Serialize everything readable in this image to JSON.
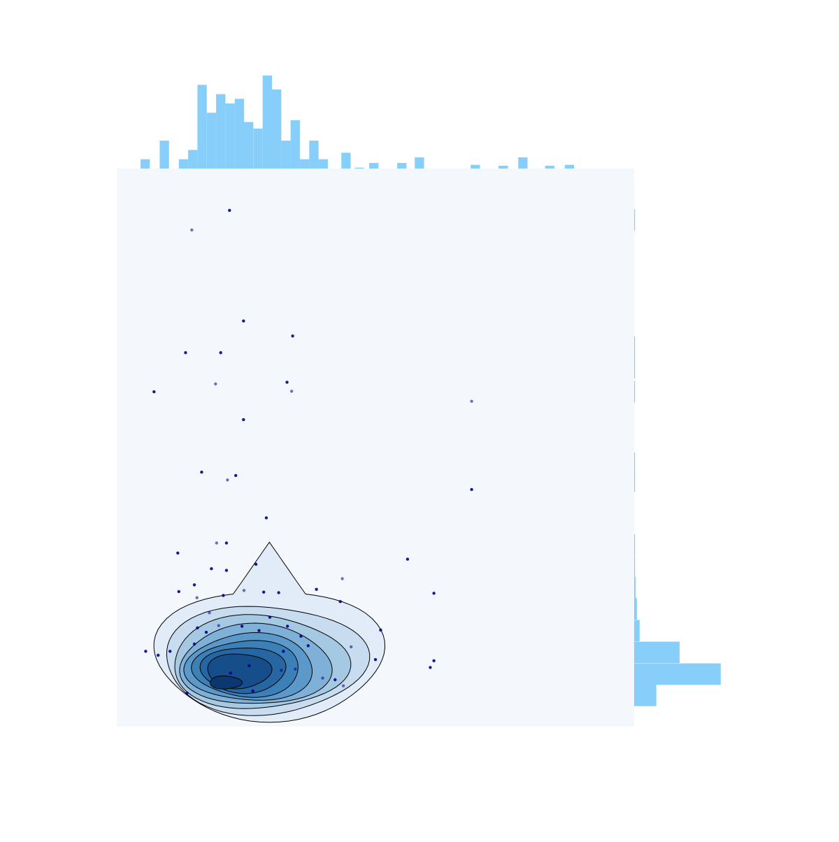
{
  "chart_data": {
    "type": "scatter",
    "title": "",
    "xlabel": "",
    "ylabel": "",
    "xlim": [
      0,
      100
    ],
    "ylim": [
      0,
      100
    ],
    "grid": false,
    "axes_visible": false,
    "colors": {
      "plot_background": "#f4f8fd",
      "marginal_bars": "#87cefa",
      "points": "#00008b",
      "contour_line": "#000000",
      "density_fills": [
        "#e1ecf8",
        "#c8dcf0",
        "#a6c9e3",
        "#7fb1d8",
        "#5a99c9",
        "#3c80b8",
        "#2566a3",
        "#154e8a",
        "#0b3870"
      ]
    },
    "scatter_points": [
      [
        21.8,
        92.5
      ],
      [
        14.5,
        89.0
      ],
      [
        13.3,
        67.0
      ],
      [
        7.2,
        60.0
      ],
      [
        20.1,
        67.0
      ],
      [
        19.1,
        61.4
      ],
      [
        34.0,
        70.0
      ],
      [
        24.5,
        72.7
      ],
      [
        32.9,
        61.7
      ],
      [
        33.8,
        60.1
      ],
      [
        24.5,
        55.0
      ],
      [
        16.4,
        45.6
      ],
      [
        23.0,
        45.0
      ],
      [
        21.4,
        44.2
      ],
      [
        11.8,
        31.1
      ],
      [
        28.9,
        37.4
      ],
      [
        21.2,
        32.9
      ],
      [
        19.3,
        32.9
      ],
      [
        26.9,
        29.1
      ],
      [
        18.3,
        28.3
      ],
      [
        21.2,
        28.0
      ],
      [
        43.6,
        26.5
      ],
      [
        38.6,
        24.6
      ],
      [
        43.2,
        22.4
      ],
      [
        51.0,
        17.3
      ],
      [
        15.5,
        23.1
      ],
      [
        20.6,
        23.5
      ],
      [
        12.0,
        24.2
      ],
      [
        15.0,
        25.4
      ],
      [
        24.6,
        24.4
      ],
      [
        28.4,
        24.1
      ],
      [
        31.3,
        24.0
      ],
      [
        17.3,
        16.9
      ],
      [
        39.8,
        8.7
      ],
      [
        32.2,
        13.5
      ],
      [
        56.2,
        30.0
      ],
      [
        61.3,
        23.9
      ],
      [
        68.6,
        58.3
      ],
      [
        68.6,
        42.5
      ],
      [
        50.0,
        12.0
      ],
      [
        61.3,
        11.8
      ],
      [
        31.8,
        10.1
      ],
      [
        8.0,
        12.8
      ],
      [
        15.0,
        14.8
      ],
      [
        15.6,
        17.7
      ],
      [
        19.7,
        18.1
      ],
      [
        24.2,
        18.0
      ],
      [
        27.5,
        17.2
      ],
      [
        33.0,
        18.0
      ],
      [
        45.3,
        14.3
      ],
      [
        35.6,
        16.2
      ],
      [
        25.6,
        10.9
      ],
      [
        37.0,
        14.5
      ],
      [
        43.8,
        7.3
      ],
      [
        42.2,
        8.4
      ],
      [
        60.6,
        10.6
      ],
      [
        5.6,
        13.5
      ],
      [
        17.9,
        20.4
      ],
      [
        10.3,
        13.5
      ],
      [
        29.6,
        19.6
      ],
      [
        22.0,
        9.6
      ],
      [
        34.5,
        10.3
      ],
      [
        13.6,
        6.0
      ],
      [
        26.3,
        6.4
      ]
    ],
    "x_histogram": {
      "bin_start": 0,
      "bin_width": 1.8,
      "counts": [
        0,
        0,
        0,
        0,
        0,
        1,
        3,
        0,
        2,
        0,
        0,
        3,
        2,
        7,
        1,
        3,
        1,
        8,
        1,
        4,
        0,
        3,
        2,
        1,
        3,
        0,
        3,
        0,
        0,
        2,
        0,
        0,
        2,
        0,
        0,
        1,
        0,
        0,
        0,
        0,
        0,
        1,
        0,
        0,
        0,
        0,
        0,
        0,
        0,
        0,
        0,
        0,
        1,
        0,
        0,
        1,
        0,
        0,
        1,
        0,
        0,
        1,
        0,
        0,
        1,
        0,
        0,
        0,
        0,
        0,
        0,
        0,
        0,
        0,
        0,
        0,
        0,
        0,
        0,
        0,
        0,
        0,
        0,
        0,
        0,
        0,
        0,
        0,
        0,
        0,
        0,
        0,
        0,
        0,
        0,
        0,
        0,
        0,
        0,
        0,
        0
      ],
      "bars": [
        [
          4.6,
          1
        ],
        [
          8.3,
          3
        ],
        [
          12.0,
          1
        ],
        [
          13.8,
          2
        ],
        [
          15.6,
          9
        ],
        [
          17.4,
          6
        ],
        [
          19.2,
          8
        ],
        [
          21.0,
          7
        ],
        [
          22.8,
          7.5
        ],
        [
          24.6,
          5
        ],
        [
          26.4,
          4.3
        ],
        [
          28.2,
          10
        ],
        [
          30.0,
          8.5
        ],
        [
          31.8,
          3
        ],
        [
          33.6,
          5.2
        ],
        [
          35.4,
          1
        ],
        [
          37.2,
          3
        ],
        [
          39.0,
          1
        ],
        [
          43.4,
          1.7
        ],
        [
          46.0,
          0.1
        ],
        [
          48.8,
          0.6
        ],
        [
          54.2,
          0.6
        ],
        [
          57.6,
          1.2
        ],
        [
          68.4,
          0.4
        ],
        [
          73.8,
          0.3
        ],
        [
          77.6,
          1.2
        ],
        [
          82.8,
          0.3
        ],
        [
          86.6,
          0.4
        ]
      ]
    },
    "y_histogram": {
      "bars": [
        [
          5.6,
          12.2
        ],
        [
          9.4,
          47.6
        ],
        [
          13.3,
          25.0
        ],
        [
          17.2,
          3.0
        ],
        [
          21.1,
          1.5
        ],
        [
          24.9,
          0.8
        ],
        [
          28.7,
          0.4
        ],
        [
          32.6,
          0.2
        ],
        [
          44.0,
          0.1
        ],
        [
          47.2,
          0.2
        ],
        [
          60.0,
          0.3
        ],
        [
          64.3,
          0.1
        ],
        [
          68.0,
          0.1
        ],
        [
          90.8,
          0.1
        ]
      ]
    }
  }
}
